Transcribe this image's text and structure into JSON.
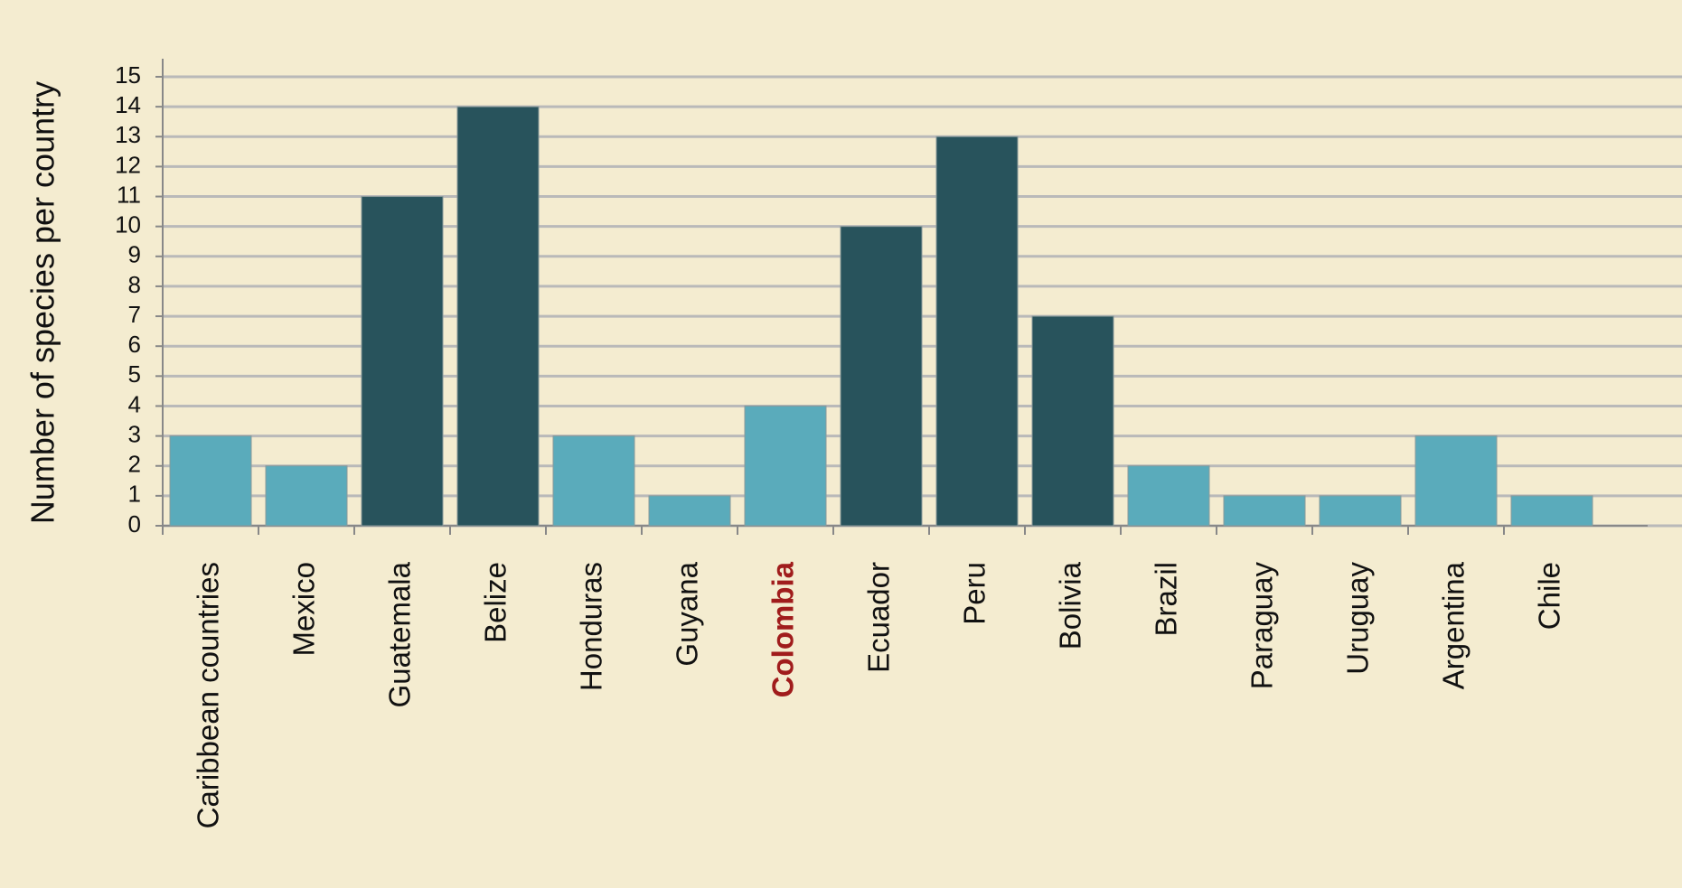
{
  "chart_data": {
    "type": "bar",
    "y_label": "Number of species per country",
    "categories": [
      "Caribbean countries",
      "Mexico",
      "Guatemala",
      "Belize",
      "Honduras",
      "Guyana",
      "Colombia",
      "Ecuador",
      "Peru",
      "Bolivia",
      "Brazil",
      "Paraguay",
      "Uruguay",
      "Argentina",
      "Chile"
    ],
    "values": [
      3,
      2,
      11,
      14,
      3,
      1,
      4,
      10,
      13,
      7,
      2,
      1,
      1,
      3,
      1
    ],
    "colors": [
      "#5aabbb",
      "#5aabbb",
      "#28535c",
      "#28535c",
      "#5aabbb",
      "#5aabbb",
      "#5aabbb",
      "#28535c",
      "#28535c",
      "#28535c",
      "#5aabbb",
      "#5aabbb",
      "#5aabbb",
      "#5aabbb",
      "#5aabbb"
    ],
    "label_colors": [
      "#111111",
      "#111111",
      "#111111",
      "#111111",
      "#111111",
      "#111111",
      "#a01c1c",
      "#111111",
      "#111111",
      "#111111",
      "#111111",
      "#111111",
      "#111111",
      "#111111",
      "#111111"
    ],
    "ylim": [
      0,
      15
    ],
    "yticks": [
      0,
      1,
      2,
      3,
      4,
      5,
      6,
      7,
      8,
      9,
      10,
      11,
      12,
      13,
      14,
      15
    ],
    "grid": true
  }
}
